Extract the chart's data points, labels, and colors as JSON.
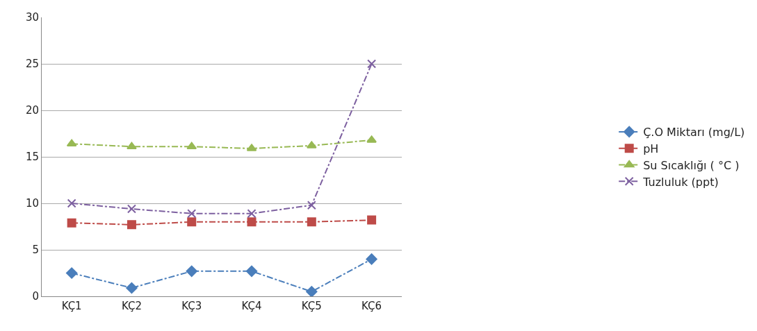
{
  "chart_data": {
    "type": "line",
    "categories": [
      "KÇ1",
      "KÇ2",
      "KÇ3",
      "KÇ4",
      "KÇ5",
      "KÇ6"
    ],
    "series": [
      {
        "name": "Ç.O Miktarı (mg/L)",
        "color": "#4a7ebb",
        "marker": "diamond",
        "values": [
          2.5,
          0.9,
          2.7,
          2.7,
          0.5,
          4.0
        ]
      },
      {
        "name": "pH",
        "color": "#be4b48",
        "marker": "square",
        "values": [
          7.9,
          7.7,
          8.0,
          8.0,
          8.0,
          8.2
        ]
      },
      {
        "name": "Su Sıcaklığı ( °C )",
        "color": "#98b954",
        "marker": "triangle",
        "values": [
          16.4,
          16.1,
          16.1,
          15.9,
          16.2,
          16.8
        ]
      },
      {
        "name": "Tuzluluk (ppt)",
        "color": "#7d60a0",
        "marker": "cross",
        "values": [
          10.0,
          9.4,
          8.9,
          8.9,
          9.8,
          25.0
        ]
      }
    ],
    "ylim": [
      0,
      30
    ],
    "yticks": [
      0,
      5,
      10,
      15,
      20,
      25,
      30
    ],
    "grid": "y",
    "legend": "right",
    "line_style": "dashed"
  }
}
